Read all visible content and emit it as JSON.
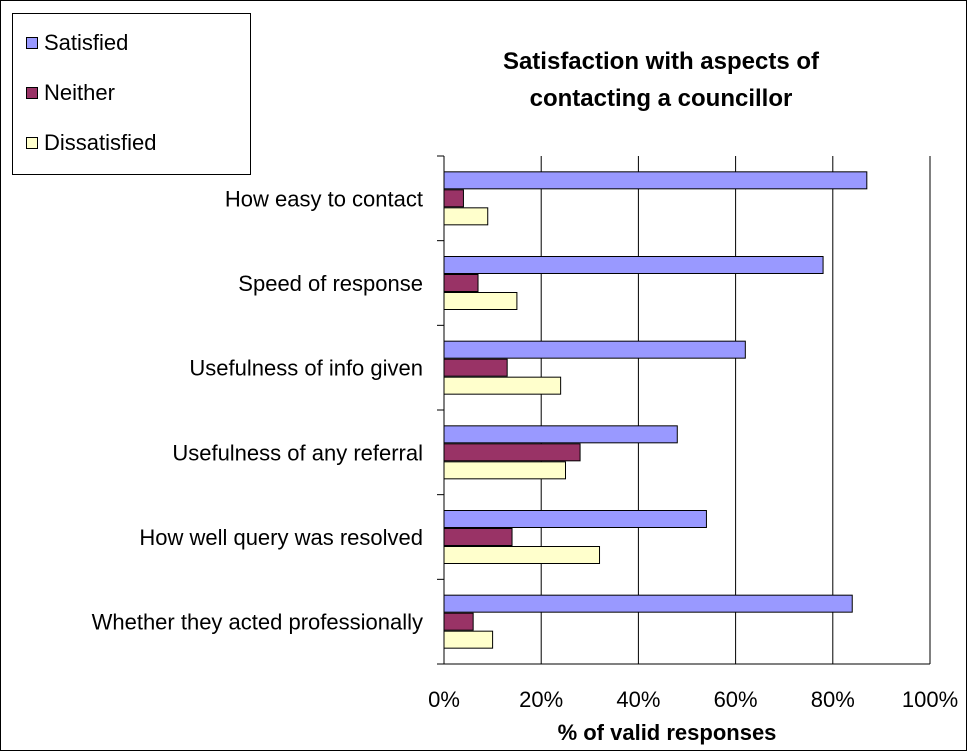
{
  "chart_data": {
    "type": "bar",
    "orientation": "horizontal",
    "title": "Satisfaction with aspects of contacting a councillor",
    "title_lines": [
      "Satisfaction with aspects of",
      "contacting a councillor"
    ],
    "xlabel": "% of valid responses",
    "ylabel": "",
    "xlim": [
      0,
      100
    ],
    "x_ticks": [
      "0%",
      "20%",
      "40%",
      "60%",
      "80%",
      "100%"
    ],
    "grid": "vertical major gridlines",
    "legend_position": "top-left",
    "categories": [
      "How easy to contact",
      "Speed of response",
      "Usefulness of info given",
      "Usefulness of any referral",
      "How well query was resolved",
      "Whether they acted professionally"
    ],
    "series": [
      {
        "name": "Satisfied",
        "color": "#9999FF",
        "values": [
          87,
          78,
          62,
          48,
          54,
          84
        ]
      },
      {
        "name": "Neither",
        "color": "#993366",
        "values": [
          4,
          7,
          13,
          28,
          14,
          6
        ]
      },
      {
        "name": "Dissatisfied",
        "color": "#FFFFCC",
        "values": [
          9,
          15,
          24,
          25,
          32,
          10
        ]
      }
    ]
  }
}
